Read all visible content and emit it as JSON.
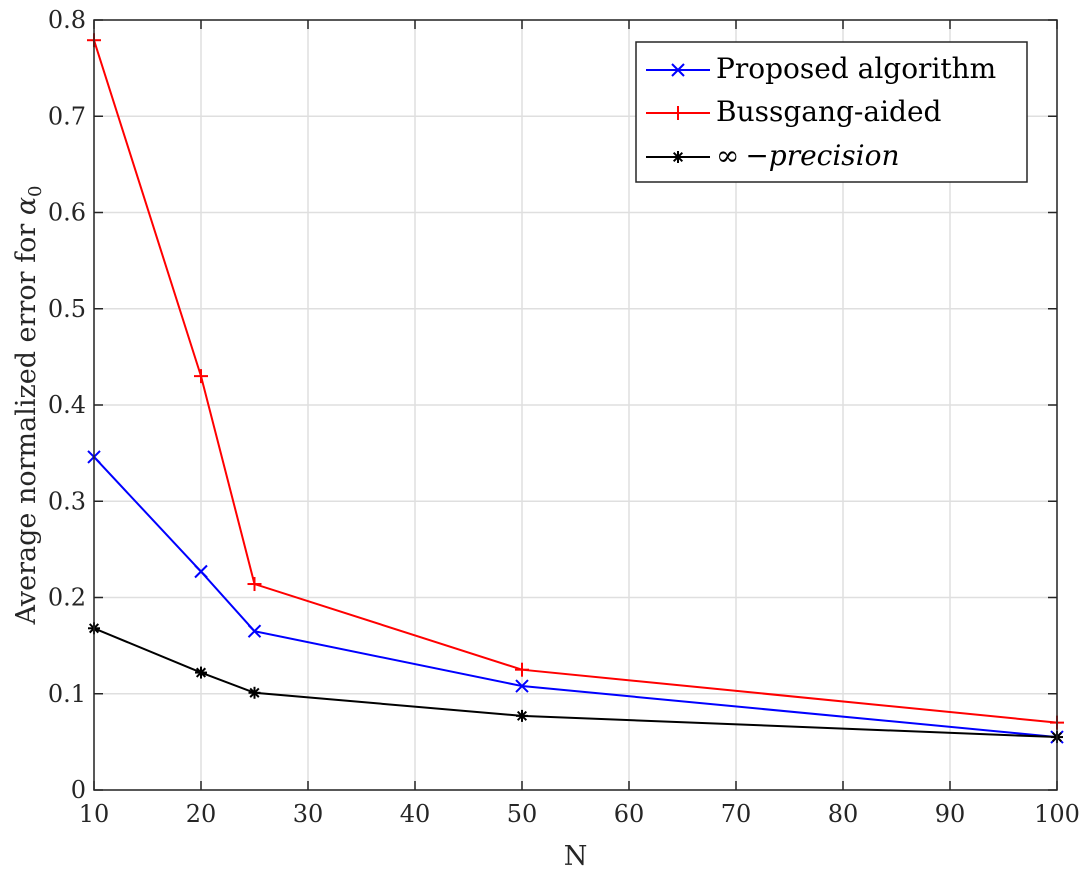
{
  "chart_data": {
    "type": "line",
    "title": "",
    "xlabel": "N",
    "ylabel": "Average normalized error for ",
    "ylabel_symbol": "α",
    "ylabel_subscript": "0",
    "xlim": [
      10,
      100
    ],
    "ylim": [
      0,
      0.8
    ],
    "xticks": [
      10,
      20,
      30,
      40,
      50,
      60,
      70,
      80,
      90,
      100
    ],
    "yticks": [
      0,
      0.1,
      0.2,
      0.3,
      0.4,
      0.5,
      0.6,
      0.7,
      0.8
    ],
    "xtick_labels": [
      "10",
      "20",
      "30",
      "40",
      "50",
      "60",
      "70",
      "80",
      "90",
      "100"
    ],
    "ytick_labels": [
      "0",
      "0.1",
      "0.2",
      "0.3",
      "0.4",
      "0.5",
      "0.6",
      "0.7",
      "0.8"
    ],
    "grid": true,
    "legend_position": "top-right",
    "x": [
      10,
      20,
      25,
      50,
      100
    ],
    "series": [
      {
        "name": "Proposed algorithm",
        "color": "#0000ff",
        "marker": "x",
        "values": [
          0.346,
          0.227,
          0.165,
          0.108,
          0.055
        ]
      },
      {
        "name": "Bussgang-aided",
        "color": "#ff0000",
        "marker": "+",
        "values": [
          0.779,
          0.43,
          0.214,
          0.125,
          0.07
        ]
      },
      {
        "name": "−precision",
        "name_symbol": "∞",
        "color": "#000000",
        "marker": "asterisk",
        "values": [
          0.168,
          0.122,
          0.101,
          0.077,
          0.055
        ]
      }
    ]
  }
}
